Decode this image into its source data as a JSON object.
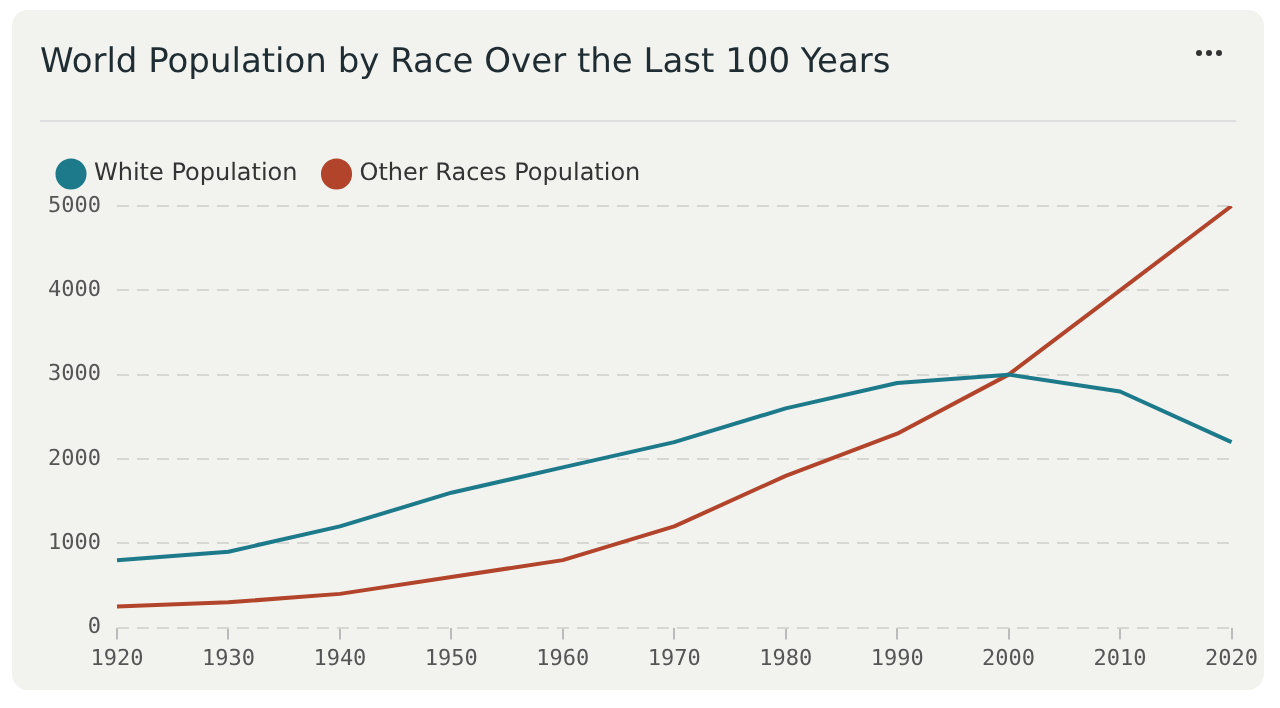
{
  "chart_data": {
    "type": "line",
    "title": "World Population by Race Over the Last 100 Years",
    "categories": [
      "1920",
      "1930",
      "1940",
      "1950",
      "1960",
      "1970",
      "1980",
      "1990",
      "2000",
      "2010",
      "2020"
    ],
    "series": [
      {
        "name": "White Population",
        "color": "#1d7a8a",
        "values": [
          800,
          900,
          1200,
          1600,
          1900,
          2200,
          2600,
          2900,
          3000,
          2800,
          2200
        ]
      },
      {
        "name": "Other Races Population",
        "color": "#b1442a",
        "values": [
          250,
          300,
          400,
          600,
          800,
          1200,
          1800,
          2300,
          3000,
          4000,
          5000
        ]
      }
    ],
    "ylim": [
      0,
      5000
    ],
    "yticks": [
      0,
      1000,
      2000,
      3000,
      4000,
      5000
    ],
    "grid": "y",
    "legend": "top left",
    "marker": "none",
    "line_style": "solid"
  }
}
